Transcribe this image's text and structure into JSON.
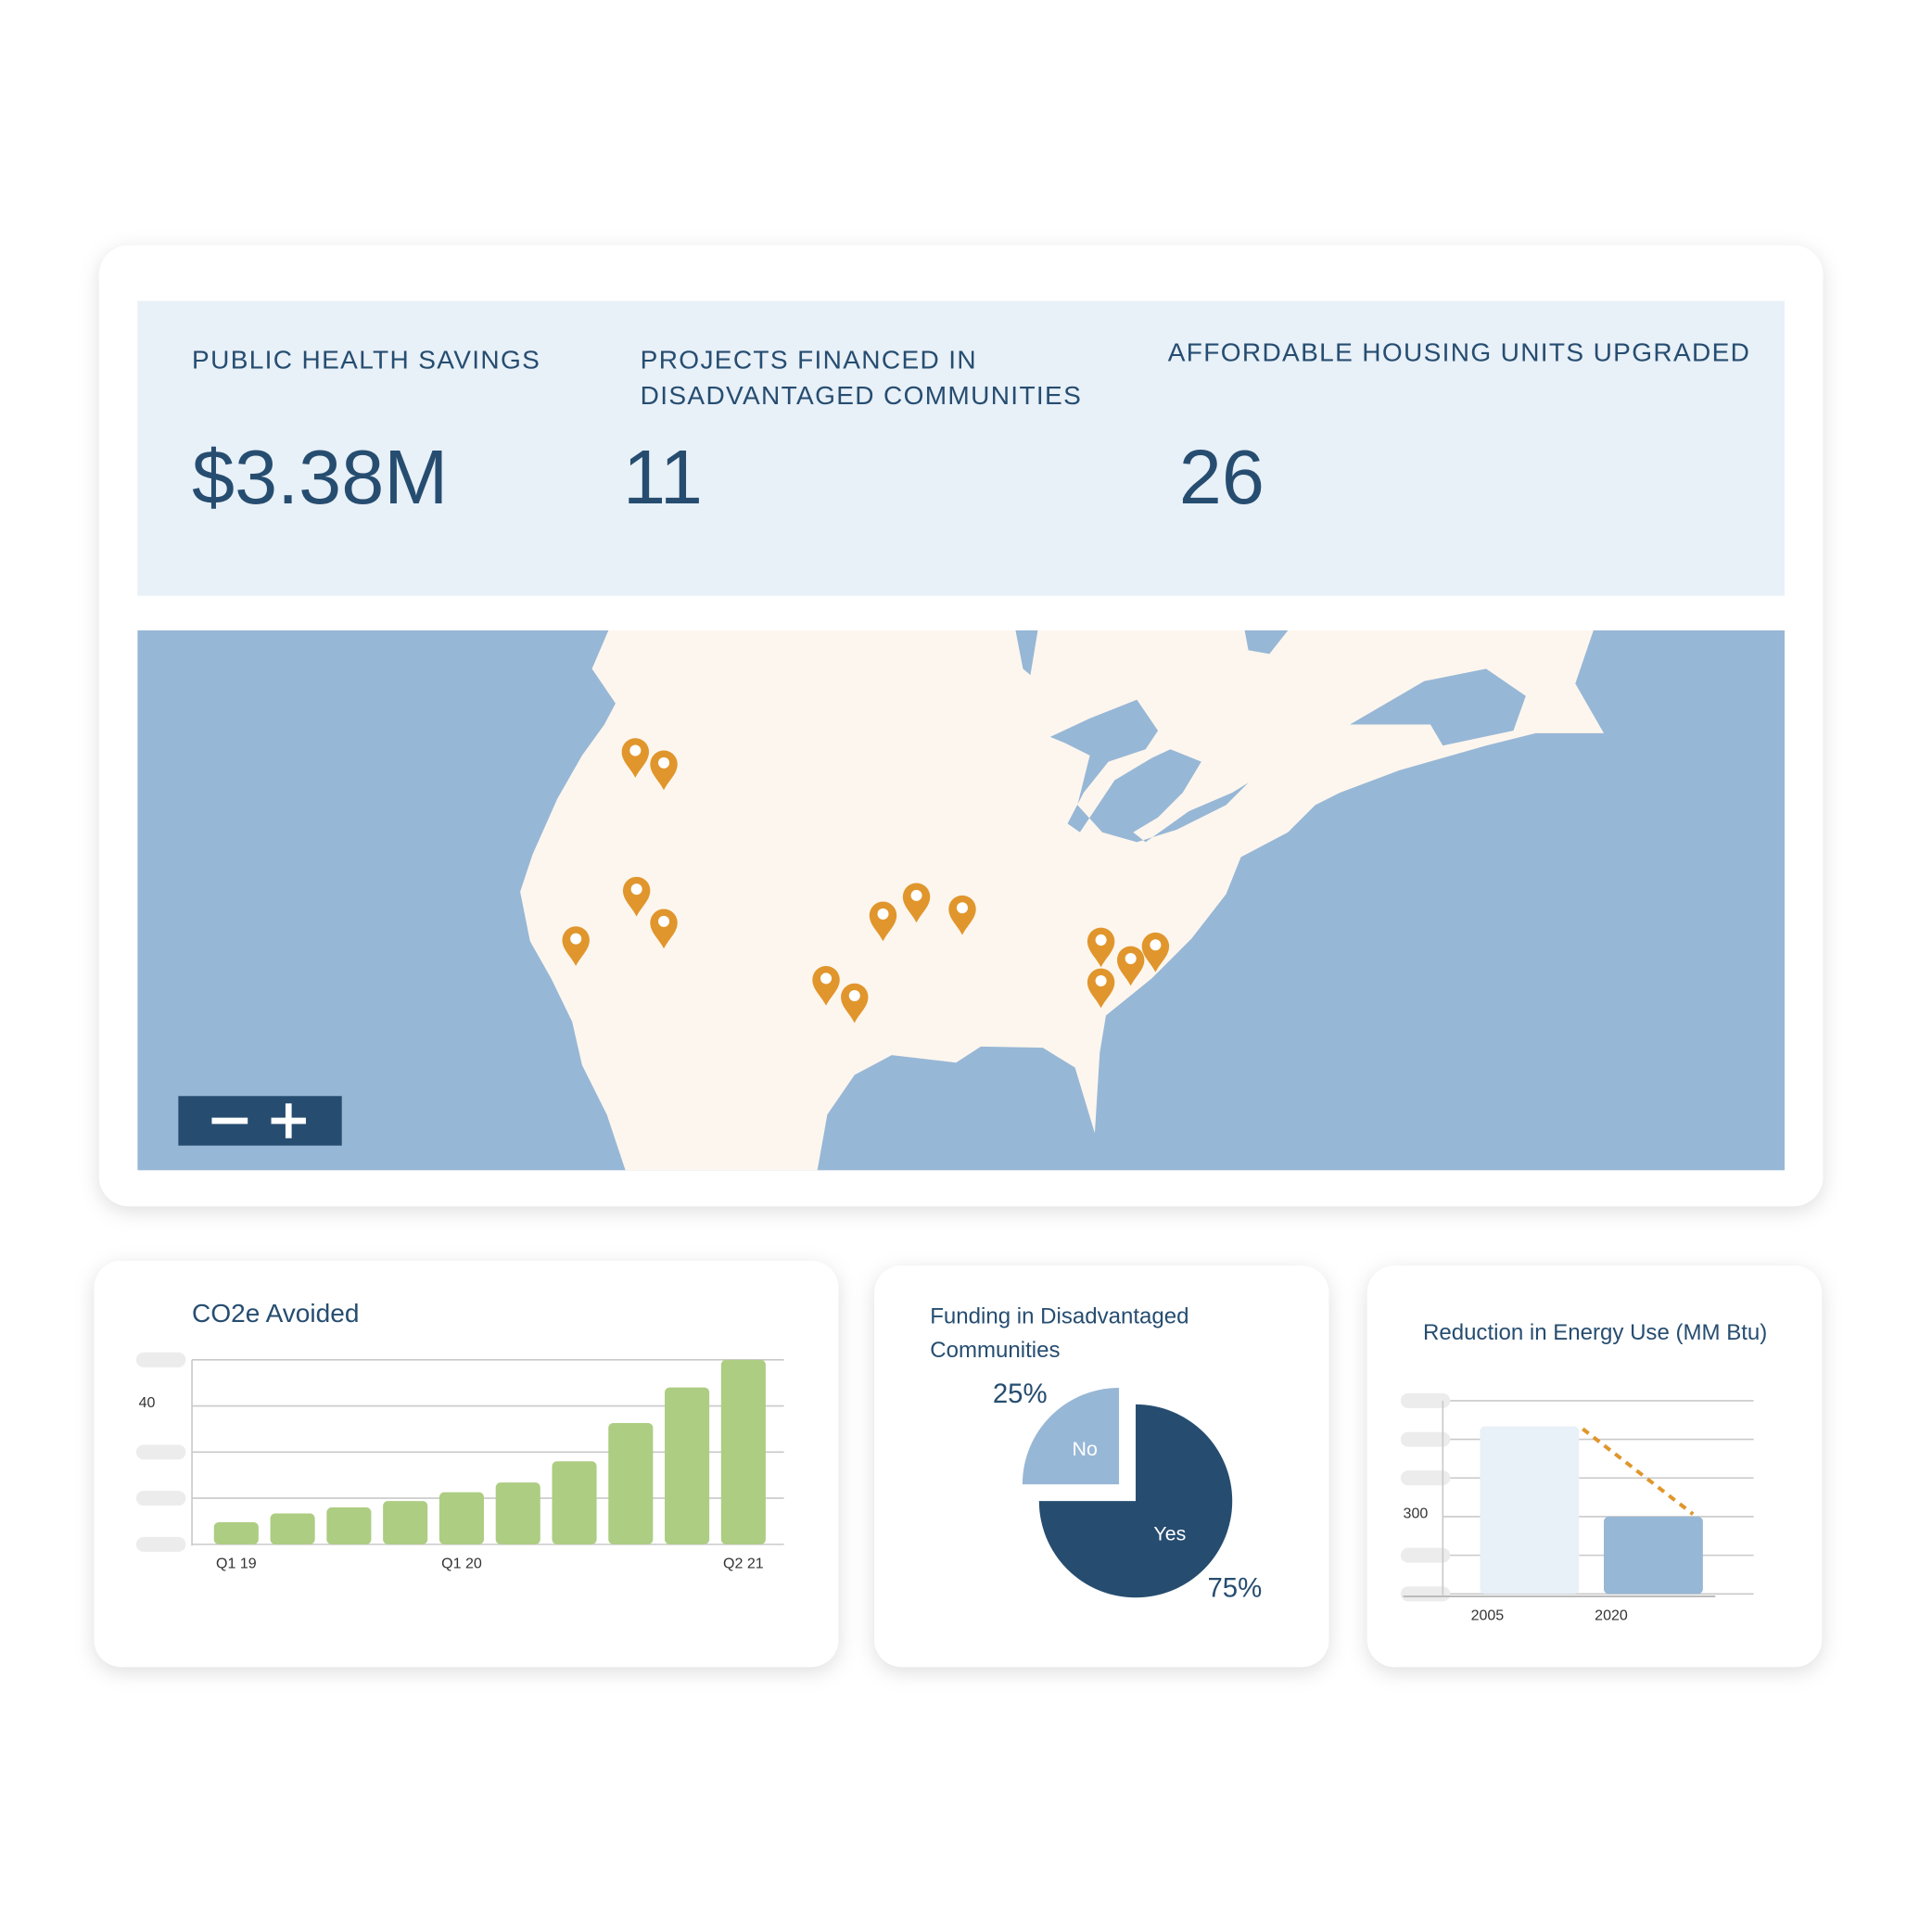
{
  "kpis": [
    {
      "label": [
        "PUBLIC HEALTH SAVINGS"
      ],
      "value": "$3.38M"
    },
    {
      "label": [
        "PROJECTS FINANCED IN",
        "DISADVANTAGED COMMUNITIES"
      ],
      "value": 11
    },
    {
      "label": [
        "AFFORDABLE HOUSING UNITS UPGRADED"
      ],
      "value": 26
    }
  ],
  "chart_data": [
    {
      "type": "bar",
      "title": [
        "CO2e Avoided"
      ],
      "categories": [
        "Q1 19",
        null,
        null,
        null,
        "Q1 20",
        null,
        null,
        null,
        null,
        "Q2 21"
      ],
      "values": [
        14.8,
        16.7,
        18,
        19.4,
        21.3,
        23.4,
        28,
        36.3,
        44,
        50
      ],
      "color": "#adcd82",
      "ylim": [
        10,
        50
      ],
      "yticks": [
        {
          "value": 10,
          "label": null
        },
        {
          "value": 20,
          "label": null
        },
        {
          "value": 30,
          "label": null
        },
        40,
        {
          "value": 50,
          "label": null
        }
      ],
      "grid": true
    },
    {
      "type": "pie",
      "title": [
        "Funding in Disadvantaged",
        "Communities"
      ],
      "categories": [
        "Yes",
        "No"
      ],
      "values": [
        75,
        25
      ],
      "value_labels": [
        "75%",
        "25%"
      ],
      "colors": [
        "#264d70",
        "#97b7d6"
      ],
      "explode": [
        0,
        1
      ]
    },
    {
      "type": "bar",
      "title": [
        "Reduction in Energy Use (MM Btu)"
      ],
      "categories": [
        "2005",
        "2020"
      ],
      "values": [
        650,
        300
      ],
      "colors": [
        "#e8f0f8",
        "#97b7d6"
      ],
      "ylim": [
        0,
        750
      ],
      "yticks": [
        {
          "value": 0,
          "label": null
        },
        {
          "value": 150,
          "label": null
        },
        300,
        {
          "value": 450,
          "label": null
        },
        {
          "value": 600,
          "label": null
        },
        {
          "value": 750,
          "label": null
        }
      ],
      "grid": true,
      "trend_color": "#e0962c"
    }
  ]
}
